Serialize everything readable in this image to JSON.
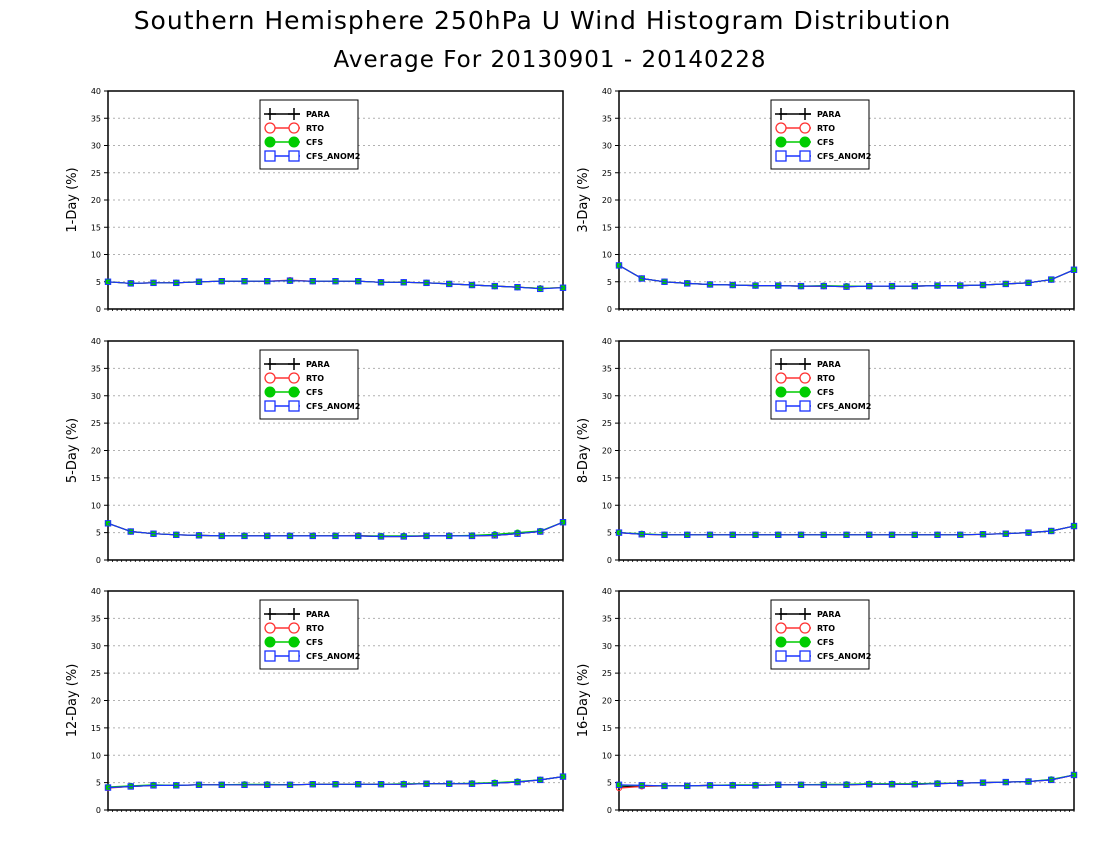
{
  "title": "Southern Hemisphere 250hPa U Wind Histogram Distribution",
  "subtitle": "Average For 20130901 - 20140228",
  "colors": {
    "PARA": "#000000",
    "RTO": "#ff3333",
    "CFS": "#00cc00",
    "CFS_ANOM2": "#1a33ff",
    "grid": "#b0b0b0",
    "frame": "#000000"
  },
  "chart_data": [
    {
      "type": "line",
      "ylabel": "1-Day (%)",
      "ylim": [
        0,
        40
      ],
      "yticks": [
        0,
        5,
        10,
        15,
        20,
        25,
        30,
        35,
        40
      ],
      "grid": true,
      "legend_position": "top-center",
      "series": [
        {
          "name": "PARA",
          "marker": "plus",
          "values": [
            5.0,
            4.7,
            4.8,
            4.8,
            5.0,
            5.1,
            5.1,
            5.1,
            5.2,
            5.1,
            5.1,
            5.1,
            4.9,
            4.9,
            4.8,
            4.6,
            4.4,
            4.2,
            4.0,
            3.8,
            3.9
          ]
        },
        {
          "name": "RTO",
          "marker": "open-circle",
          "values": [
            5.0,
            4.7,
            4.8,
            4.8,
            5.0,
            5.1,
            5.1,
            5.1,
            5.3,
            5.1,
            5.1,
            5.1,
            4.9,
            4.9,
            4.8,
            4.6,
            4.4,
            4.2,
            4.0,
            3.8,
            3.9
          ]
        },
        {
          "name": "CFS",
          "marker": "filled-circle",
          "values": [
            5.0,
            4.7,
            4.8,
            4.8,
            5.0,
            5.1,
            5.1,
            5.1,
            5.2,
            5.1,
            5.1,
            5.1,
            4.9,
            4.9,
            4.8,
            4.6,
            4.4,
            4.2,
            4.0,
            3.8,
            3.9
          ]
        },
        {
          "name": "CFS_ANOM2",
          "marker": "open-square",
          "values": [
            5.0,
            4.7,
            4.8,
            4.8,
            5.0,
            5.1,
            5.1,
            5.1,
            5.2,
            5.1,
            5.1,
            5.1,
            4.9,
            4.9,
            4.8,
            4.6,
            4.4,
            4.2,
            4.0,
            3.7,
            3.9
          ]
        }
      ]
    },
    {
      "type": "line",
      "ylabel": "3-Day (%)",
      "ylim": [
        0,
        40
      ],
      "yticks": [
        0,
        5,
        10,
        15,
        20,
        25,
        30,
        35,
        40
      ],
      "grid": true,
      "legend_position": "top-center",
      "series": [
        {
          "name": "PARA",
          "marker": "plus",
          "values": [
            8.0,
            5.6,
            5.0,
            4.7,
            4.5,
            4.4,
            4.3,
            4.3,
            4.2,
            4.2,
            4.1,
            4.2,
            4.2,
            4.2,
            4.3,
            4.3,
            4.4,
            4.6,
            4.8,
            5.4,
            7.2
          ]
        },
        {
          "name": "RTO",
          "marker": "open-circle",
          "values": [
            8.0,
            5.6,
            5.0,
            4.7,
            4.5,
            4.4,
            4.3,
            4.3,
            4.2,
            4.2,
            4.1,
            4.2,
            4.2,
            4.2,
            4.3,
            4.3,
            4.4,
            4.6,
            4.8,
            5.4,
            7.2
          ]
        },
        {
          "name": "CFS",
          "marker": "filled-circle",
          "values": [
            8.0,
            5.6,
            5.0,
            4.7,
            4.5,
            4.4,
            4.3,
            4.3,
            4.2,
            4.3,
            4.2,
            4.2,
            4.2,
            4.2,
            4.3,
            4.3,
            4.4,
            4.6,
            4.8,
            5.4,
            7.2
          ]
        },
        {
          "name": "CFS_ANOM2",
          "marker": "open-square",
          "values": [
            8.0,
            5.6,
            5.0,
            4.7,
            4.5,
            4.4,
            4.3,
            4.3,
            4.2,
            4.2,
            4.1,
            4.2,
            4.2,
            4.2,
            4.3,
            4.3,
            4.4,
            4.6,
            4.8,
            5.4,
            7.2
          ]
        }
      ]
    },
    {
      "type": "line",
      "ylabel": "5-Day (%)",
      "ylim": [
        0,
        40
      ],
      "yticks": [
        0,
        5,
        10,
        15,
        20,
        25,
        30,
        35,
        40
      ],
      "grid": true,
      "legend_position": "top-center",
      "series": [
        {
          "name": "PARA",
          "marker": "plus",
          "values": [
            6.7,
            5.2,
            4.8,
            4.6,
            4.5,
            4.4,
            4.4,
            4.4,
            4.4,
            4.4,
            4.4,
            4.4,
            4.3,
            4.3,
            4.4,
            4.4,
            4.4,
            4.5,
            4.8,
            5.2,
            6.9
          ]
        },
        {
          "name": "RTO",
          "marker": "open-circle",
          "values": [
            6.7,
            5.2,
            4.8,
            4.6,
            4.5,
            4.4,
            4.4,
            4.4,
            4.4,
            4.4,
            4.4,
            4.5,
            4.3,
            4.3,
            4.4,
            4.4,
            4.4,
            4.5,
            4.8,
            5.2,
            6.9
          ]
        },
        {
          "name": "CFS",
          "marker": "filled-circle",
          "values": [
            6.7,
            5.2,
            4.8,
            4.6,
            4.5,
            4.4,
            4.4,
            4.4,
            4.4,
            4.4,
            4.4,
            4.4,
            4.4,
            4.4,
            4.4,
            4.4,
            4.5,
            4.7,
            5.0,
            5.3,
            6.9
          ]
        },
        {
          "name": "CFS_ANOM2",
          "marker": "open-square",
          "values": [
            6.7,
            5.2,
            4.8,
            4.6,
            4.5,
            4.4,
            4.4,
            4.4,
            4.4,
            4.4,
            4.4,
            4.4,
            4.3,
            4.3,
            4.4,
            4.4,
            4.4,
            4.5,
            4.8,
            5.2,
            6.9
          ]
        }
      ]
    },
    {
      "type": "line",
      "ylabel": "8-Day (%)",
      "ylim": [
        0,
        40
      ],
      "yticks": [
        0,
        5,
        10,
        15,
        20,
        25,
        30,
        35,
        40
      ],
      "grid": true,
      "legend_position": "top-center",
      "series": [
        {
          "name": "PARA",
          "marker": "plus",
          "values": [
            5.0,
            4.7,
            4.6,
            4.6,
            4.6,
            4.6,
            4.6,
            4.6,
            4.6,
            4.6,
            4.6,
            4.6,
            4.6,
            4.6,
            4.6,
            4.6,
            4.7,
            4.8,
            5.0,
            5.3,
            6.2
          ]
        },
        {
          "name": "RTO",
          "marker": "open-circle",
          "values": [
            5.0,
            4.7,
            4.6,
            4.6,
            4.6,
            4.6,
            4.6,
            4.6,
            4.6,
            4.6,
            4.6,
            4.6,
            4.6,
            4.6,
            4.6,
            4.6,
            4.7,
            4.8,
            5.0,
            5.3,
            6.2
          ]
        },
        {
          "name": "CFS",
          "marker": "filled-circle",
          "values": [
            5.0,
            4.8,
            4.6,
            4.6,
            4.6,
            4.6,
            4.6,
            4.6,
            4.6,
            4.6,
            4.6,
            4.6,
            4.6,
            4.6,
            4.6,
            4.6,
            4.7,
            4.8,
            5.0,
            5.3,
            6.2
          ]
        },
        {
          "name": "CFS_ANOM2",
          "marker": "open-square",
          "values": [
            5.0,
            4.7,
            4.6,
            4.6,
            4.6,
            4.6,
            4.6,
            4.6,
            4.6,
            4.6,
            4.6,
            4.6,
            4.6,
            4.6,
            4.6,
            4.6,
            4.7,
            4.8,
            5.0,
            5.3,
            6.2
          ]
        }
      ]
    },
    {
      "type": "line",
      "ylabel": "12-Day (%)",
      "ylim": [
        0,
        40
      ],
      "yticks": [
        0,
        5,
        10,
        15,
        20,
        25,
        30,
        35,
        40
      ],
      "grid": true,
      "legend_position": "top-center",
      "series": [
        {
          "name": "PARA",
          "marker": "plus",
          "values": [
            4.1,
            4.3,
            4.5,
            4.5,
            4.6,
            4.6,
            4.6,
            4.6,
            4.6,
            4.7,
            4.7,
            4.7,
            4.7,
            4.7,
            4.8,
            4.8,
            4.8,
            4.9,
            5.1,
            5.5,
            6.1
          ]
        },
        {
          "name": "RTO",
          "marker": "open-circle",
          "values": [
            4.0,
            4.3,
            4.5,
            4.5,
            4.6,
            4.6,
            4.6,
            4.6,
            4.6,
            4.7,
            4.7,
            4.7,
            4.7,
            4.7,
            4.8,
            4.8,
            4.8,
            4.9,
            5.1,
            5.5,
            6.1
          ]
        },
        {
          "name": "CFS",
          "marker": "filled-circle",
          "values": [
            4.2,
            4.4,
            4.6,
            4.5,
            4.6,
            4.6,
            4.7,
            4.7,
            4.6,
            4.7,
            4.7,
            4.7,
            4.7,
            4.8,
            4.8,
            4.8,
            4.9,
            5.0,
            5.2,
            5.5,
            6.1
          ]
        },
        {
          "name": "CFS_ANOM2",
          "marker": "open-square",
          "values": [
            4.1,
            4.3,
            4.5,
            4.5,
            4.6,
            4.6,
            4.6,
            4.6,
            4.6,
            4.7,
            4.7,
            4.7,
            4.7,
            4.7,
            4.8,
            4.8,
            4.8,
            4.9,
            5.1,
            5.5,
            6.1
          ]
        }
      ]
    },
    {
      "type": "line",
      "ylabel": "16-Day (%)",
      "ylim": [
        0,
        40
      ],
      "yticks": [
        0,
        5,
        10,
        15,
        20,
        25,
        30,
        35,
        40
      ],
      "grid": true,
      "legend_position": "top-center",
      "series": [
        {
          "name": "PARA",
          "marker": "plus",
          "values": [
            4.2,
            4.4,
            4.4,
            4.4,
            4.5,
            4.5,
            4.5,
            4.6,
            4.6,
            4.6,
            4.6,
            4.7,
            4.7,
            4.7,
            4.8,
            4.9,
            5.0,
            5.1,
            5.2,
            5.5,
            6.4
          ]
        },
        {
          "name": "RTO",
          "marker": "open-circle",
          "values": [
            4.0,
            4.3,
            4.4,
            4.4,
            4.5,
            4.5,
            4.5,
            4.6,
            4.6,
            4.6,
            4.6,
            4.7,
            4.7,
            4.7,
            4.8,
            4.9,
            5.0,
            5.1,
            5.2,
            5.5,
            6.4
          ]
        },
        {
          "name": "CFS",
          "marker": "filled-circle",
          "values": [
            4.5,
            4.5,
            4.4,
            4.4,
            4.5,
            4.6,
            4.6,
            4.6,
            4.6,
            4.7,
            4.7,
            4.8,
            4.8,
            4.8,
            4.9,
            4.9,
            5.0,
            5.1,
            5.2,
            5.6,
            6.4
          ]
        },
        {
          "name": "CFS_ANOM2",
          "marker": "open-square",
          "values": [
            4.6,
            4.5,
            4.4,
            4.4,
            4.5,
            4.5,
            4.5,
            4.6,
            4.6,
            4.6,
            4.6,
            4.7,
            4.7,
            4.7,
            4.8,
            4.9,
            5.0,
            5.1,
            5.2,
            5.5,
            6.4
          ]
        }
      ]
    }
  ]
}
